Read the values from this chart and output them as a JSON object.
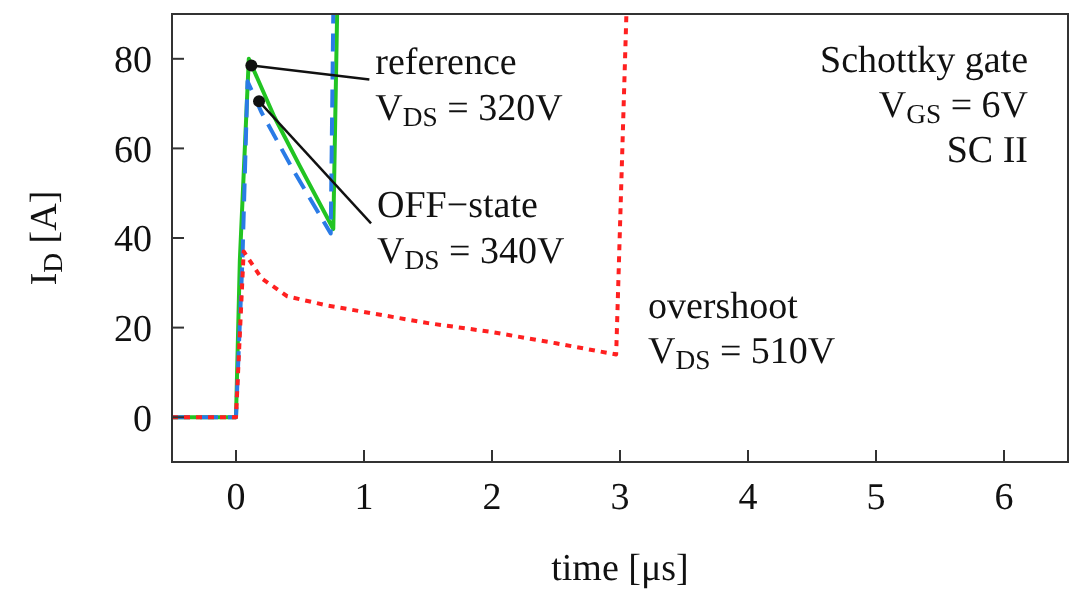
{
  "chart_data": {
    "type": "line",
    "xlabel": "time [μs]",
    "ylabel": "I$_{D}$ [A]",
    "xlim": [
      -0.5,
      6.5
    ],
    "xticks": [
      0,
      1,
      2,
      3,
      4,
      5,
      6
    ],
    "ylim": [
      -10,
      90
    ],
    "yticks": [
      0,
      20,
      40,
      60,
      80
    ],
    "grid": false,
    "marker": "none",
    "series": [
      {
        "color": "#22c422",
        "line_style": "solid",
        "x": [
          -0.5,
          0,
          0.03,
          0.1,
          0.3,
          0.5,
          0.76,
          0.79
        ],
        "values": [
          0,
          0,
          35,
          80,
          67,
          56,
          42,
          90
        ]
      },
      {
        "color": "#2a7be6",
        "line_style": "dashed",
        "x": [
          -0.5,
          0,
          0.05,
          0.09,
          0.2,
          0.45,
          0.74,
          0.76
        ],
        "values": [
          0,
          0,
          35,
          75,
          68,
          55,
          41,
          90
        ]
      },
      {
        "color": "#ff2020",
        "line_style": "dotted",
        "x": [
          -0.5,
          0,
          0.06,
          0.2,
          0.4,
          0.7,
          1,
          1.5,
          2,
          2.5,
          2.97,
          3.05
        ],
        "values": [
          0,
          0,
          37,
          31,
          27,
          25,
          23.5,
          21,
          19,
          16.5,
          14,
          90
        ]
      }
    ],
    "annotations": [
      {
        "text": "reference\nV$_{DS}$ = 320V",
        "x": 0.12,
        "y": 78.5
      },
      {
        "text": "OFF−state\nV$_{DS}$ = 340V",
        "x": 0.18,
        "y": 70.5
      },
      "overshoot\nV$_{DS}$ = 510V",
      "Schottky gate\nV$_{GS}$ = 6V\nSC II"
    ]
  }
}
